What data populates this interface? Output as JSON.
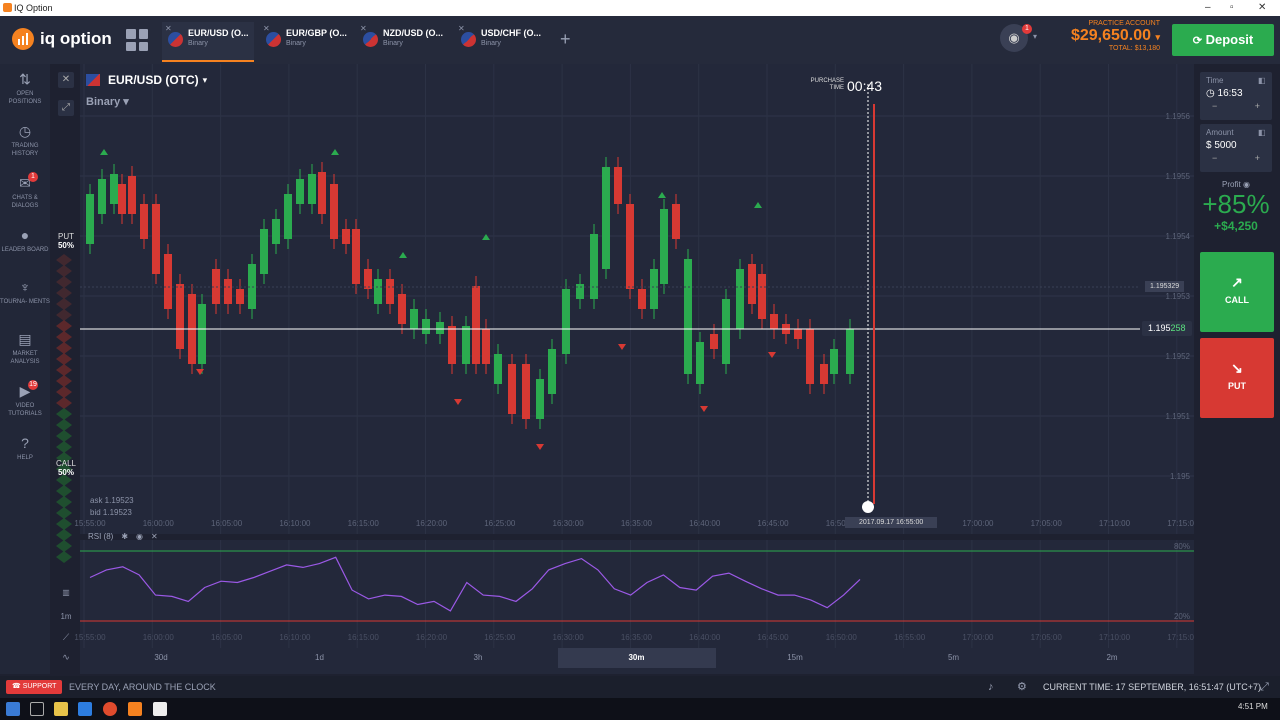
{
  "window": {
    "title": "IQ Option"
  },
  "header": {
    "brand": "iq option",
    "tabs": [
      {
        "name": "EUR/USD (O...",
        "type": "Binary",
        "active": true
      },
      {
        "name": "EUR/GBP (O...",
        "type": "Binary",
        "active": false
      },
      {
        "name": "NZD/USD (O...",
        "type": "Binary",
        "active": false
      },
      {
        "name": "USD/CHF (O...",
        "type": "Binary",
        "active": false
      }
    ],
    "camera_badge": "1",
    "account_label": "PRACTICE ACCOUNT",
    "balance": "$29,650.00",
    "total": "TOTAL: $13,180",
    "deposit_label": "Deposit"
  },
  "sidebar": {
    "items": [
      {
        "label": "OPEN POSITIONS",
        "icon": "arrows-updown-icon",
        "glyph": "⇅"
      },
      {
        "label": "TRADING HISTORY",
        "icon": "history-icon",
        "glyph": "◷"
      },
      {
        "label": "CHATS & DIALOGS",
        "icon": "chat-icon",
        "glyph": "✉",
        "badge": "1"
      },
      {
        "label": "LEADER BOARD",
        "icon": "leaderboard-icon",
        "glyph": "●"
      },
      {
        "label": "TOURNA- MENTS",
        "icon": "trophy-icon",
        "glyph": "♆"
      },
      {
        "label": "MARKET ANALYSIS",
        "icon": "analysis-icon",
        "glyph": "▤"
      },
      {
        "label": "VIDEO TUTORIALS",
        "icon": "video-icon",
        "glyph": "▶",
        "badge": "19"
      },
      {
        "label": "HELP",
        "icon": "help-icon",
        "glyph": "?"
      }
    ]
  },
  "asset": {
    "name": "EUR/USD (OTC)",
    "mode": "Binary"
  },
  "sentiment": {
    "put_label": "PUT",
    "put_pct": "50%",
    "call_label": "CALL",
    "call_pct": "50%"
  },
  "purchase": {
    "label": "PURCHASE TIME",
    "countdown": "00:43"
  },
  "quote": {
    "ask": "ask 1.19523",
    "bid": "bid 1.19523",
    "current_int": "1.195",
    "current_dec": "258",
    "marker": "1.195329",
    "expiry_time": "2017.09.17 16:55:00"
  },
  "chart_data": {
    "type": "candlestick",
    "y_ticks": [
      "1.1956",
      "1.1955",
      "1.1954",
      "1.1953",
      "1.1952",
      "1.1951",
      "1.195"
    ],
    "x_ticks": [
      "15:55:00",
      "16:00:00",
      "16:05:00",
      "16:10:00",
      "16:15:00",
      "16:20:00",
      "16:25:00",
      "16:30:00",
      "16:35:00",
      "16:40:00",
      "16:45:00",
      "16:50:00",
      "16:55:00",
      "17:00:00",
      "17:05:00",
      "17:10:00",
      "17:15:00"
    ],
    "rsi": {
      "label": "RSI (8)",
      "upper": "80%",
      "lower": "20%",
      "values": [
        58,
        70,
        75,
        62,
        30,
        28,
        20,
        42,
        52,
        50,
        58,
        68,
        78,
        74,
        80,
        90,
        38,
        24,
        30,
        28,
        15,
        20,
        5,
        50,
        30,
        28,
        20,
        40,
        70,
        80,
        88,
        70,
        40,
        30,
        50,
        62,
        42,
        38,
        60,
        65,
        52,
        40,
        30,
        30,
        22,
        10,
        30,
        55
      ]
    }
  },
  "periods": [
    {
      "label": "30d",
      "selected": false
    },
    {
      "label": "1d",
      "selected": false
    },
    {
      "label": "3h",
      "selected": false
    },
    {
      "label": "30m",
      "selected": true
    },
    {
      "label": "15m",
      "selected": false
    },
    {
      "label": "5m",
      "selected": false
    },
    {
      "label": "2m",
      "selected": false
    }
  ],
  "chart_side_tools": [
    "1m"
  ],
  "right_panel": {
    "time_label": "Time",
    "time_value": "16:53",
    "amount_label": "Amount",
    "amount_value": "$ 5000",
    "minus": "−",
    "plus": "+",
    "profit_label": "Profit",
    "profit_pct": "+85%",
    "profit_value": "+$4,250",
    "call_label": "CALL",
    "put_label": "PUT"
  },
  "footer": {
    "support_label": "SUPPORT",
    "tagline": "EVERY DAY, AROUND THE CLOCK",
    "current_time": "CURRENT TIME: 17 SEPTEMBER, 16:51:47 (UTC+7)"
  },
  "taskbar": {
    "clock": "4:51 PM"
  },
  "colors": {
    "up": "#2bab4f",
    "down": "#d73933",
    "accent": "#f58220",
    "bg": "#1e2130"
  }
}
